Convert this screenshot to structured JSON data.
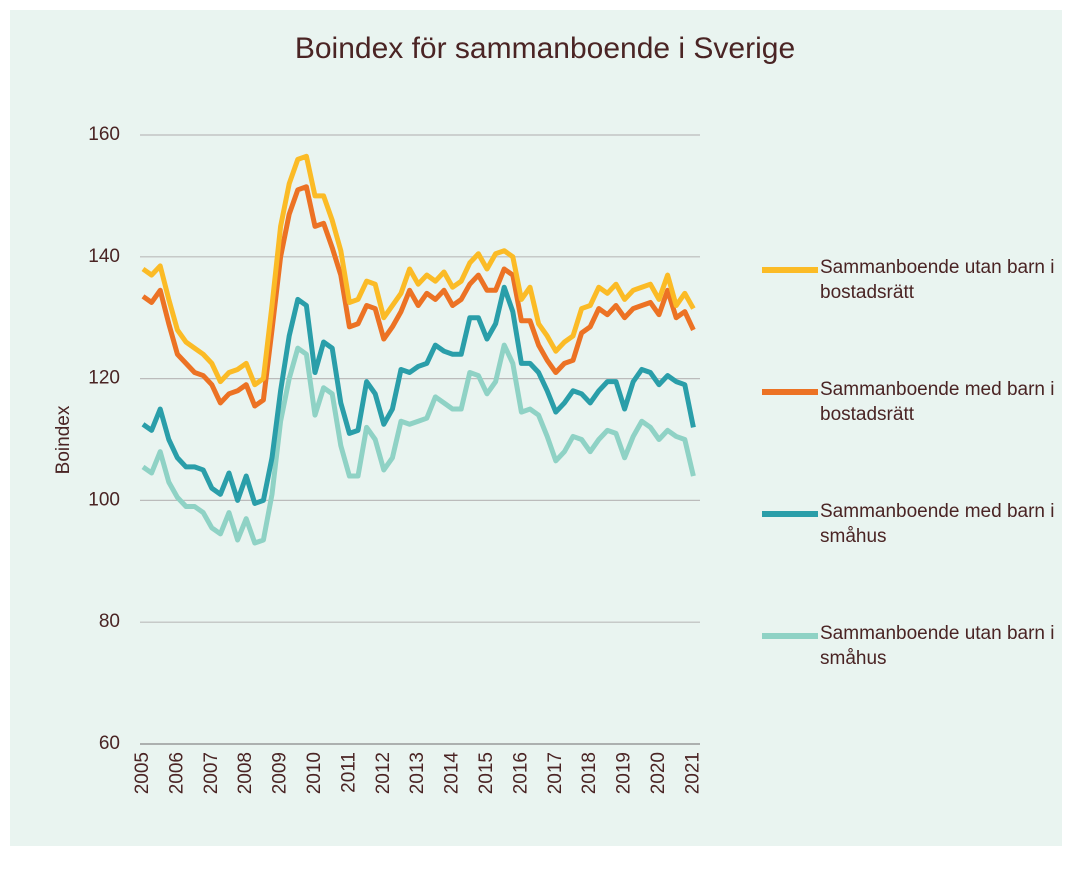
{
  "chart_data": {
    "type": "line",
    "title": "Boindex för sammanboende i Sverige",
    "y_label": "Boindex",
    "categories": [
      "2005",
      null,
      null,
      null,
      "2006",
      null,
      null,
      null,
      "2007",
      null,
      null,
      null,
      "2008",
      null,
      null,
      null,
      "2009",
      null,
      null,
      null,
      "2010",
      null,
      null,
      null,
      "2011",
      null,
      null,
      null,
      "2012",
      null,
      null,
      null,
      "2013",
      null,
      null,
      null,
      "2014",
      null,
      null,
      null,
      "2015",
      null,
      null,
      null,
      "2016",
      null,
      null,
      null,
      "2017",
      null,
      null,
      null,
      "2018",
      null,
      null,
      null,
      "2019",
      null,
      null,
      null,
      "2020",
      null,
      null,
      null,
      "2021"
    ],
    "ylim": [
      60,
      160
    ],
    "yticks": [
      60,
      80,
      100,
      120,
      140,
      160
    ],
    "grid": true,
    "legend": "right",
    "series": [
      {
        "name": "Sammanboende utan barn i bostadsrätt",
        "color": "#fbbb26",
        "values": [
          138,
          137,
          138.5,
          133,
          128,
          126,
          125,
          124,
          122.5,
          119.5,
          121,
          121.5,
          122.5,
          119,
          120,
          132,
          145,
          152,
          156,
          156.5,
          150,
          150,
          146,
          141,
          132.5,
          133,
          136,
          135.5,
          130,
          132,
          134,
          138,
          135.5,
          137,
          136,
          137.5,
          135,
          136,
          139,
          140.5,
          138,
          140.5,
          141,
          140,
          133,
          135,
          129,
          127,
          124.5,
          126,
          127,
          131.5,
          132,
          135,
          134,
          135.5,
          133,
          134.5,
          135,
          135.5,
          133,
          137,
          132,
          134,
          131.5
        ]
      },
      {
        "name": "Sammanboende med barn i bostadsrätt",
        "color": "#ec7224",
        "values": [
          133.5,
          132.5,
          134.5,
          129,
          124,
          122.5,
          121,
          120.5,
          119,
          116,
          117.5,
          118,
          119,
          115.5,
          116.5,
          128,
          140,
          147,
          151,
          151.5,
          145,
          145.5,
          141.5,
          137,
          128.5,
          129,
          132,
          131.5,
          126.5,
          128.5,
          131,
          134.5,
          132,
          134,
          133,
          134.5,
          132,
          133,
          135.5,
          137,
          134.5,
          134.5,
          138,
          137,
          129.5,
          129.5,
          125.5,
          123,
          121,
          122.5,
          123,
          127.5,
          128.5,
          131.5,
          130.5,
          132,
          130,
          131.5,
          132,
          132.5,
          130.5,
          134.5,
          130,
          131,
          128
        ]
      },
      {
        "name": "Sammanboende med barn i småhus",
        "color": "#2a9ea9",
        "values": [
          112.5,
          111.5,
          115,
          110,
          107,
          105.5,
          105.5,
          105,
          102,
          101,
          104.5,
          100,
          104,
          99.5,
          100,
          107,
          118,
          127,
          133,
          132,
          121,
          126,
          125,
          116,
          111,
          111.5,
          119.5,
          117.5,
          112.5,
          115,
          121.5,
          121,
          122,
          122.5,
          125.5,
          124.5,
          124,
          124,
          130,
          130,
          126.5,
          129,
          135,
          131,
          122.5,
          122.5,
          121,
          118,
          114.5,
          116,
          118,
          117.5,
          116,
          118,
          119.5,
          119.5,
          115,
          119.5,
          121.5,
          121,
          119,
          120.5,
          119.5,
          119,
          112
        ]
      },
      {
        "name": "Sammanboende utan barn i småhus",
        "color": "#8fd2c5",
        "values": [
          105.5,
          104.5,
          108,
          103,
          100.5,
          99,
          99,
          98,
          95.5,
          94.5,
          98,
          93.5,
          97,
          93,
          93.5,
          101,
          113,
          120,
          125,
          124,
          114,
          118.5,
          117.5,
          109,
          104,
          104,
          112,
          110,
          105,
          107,
          113,
          112.5,
          113,
          113.5,
          117,
          116,
          115,
          115,
          121,
          120.5,
          117.5,
          119.5,
          125.5,
          122.5,
          114.5,
          115,
          114,
          110.5,
          106.5,
          108,
          110.5,
          110,
          108,
          110,
          111.5,
          111,
          107,
          110.5,
          113,
          112,
          110,
          111.5,
          110.5,
          110,
          104
        ]
      }
    ]
  }
}
